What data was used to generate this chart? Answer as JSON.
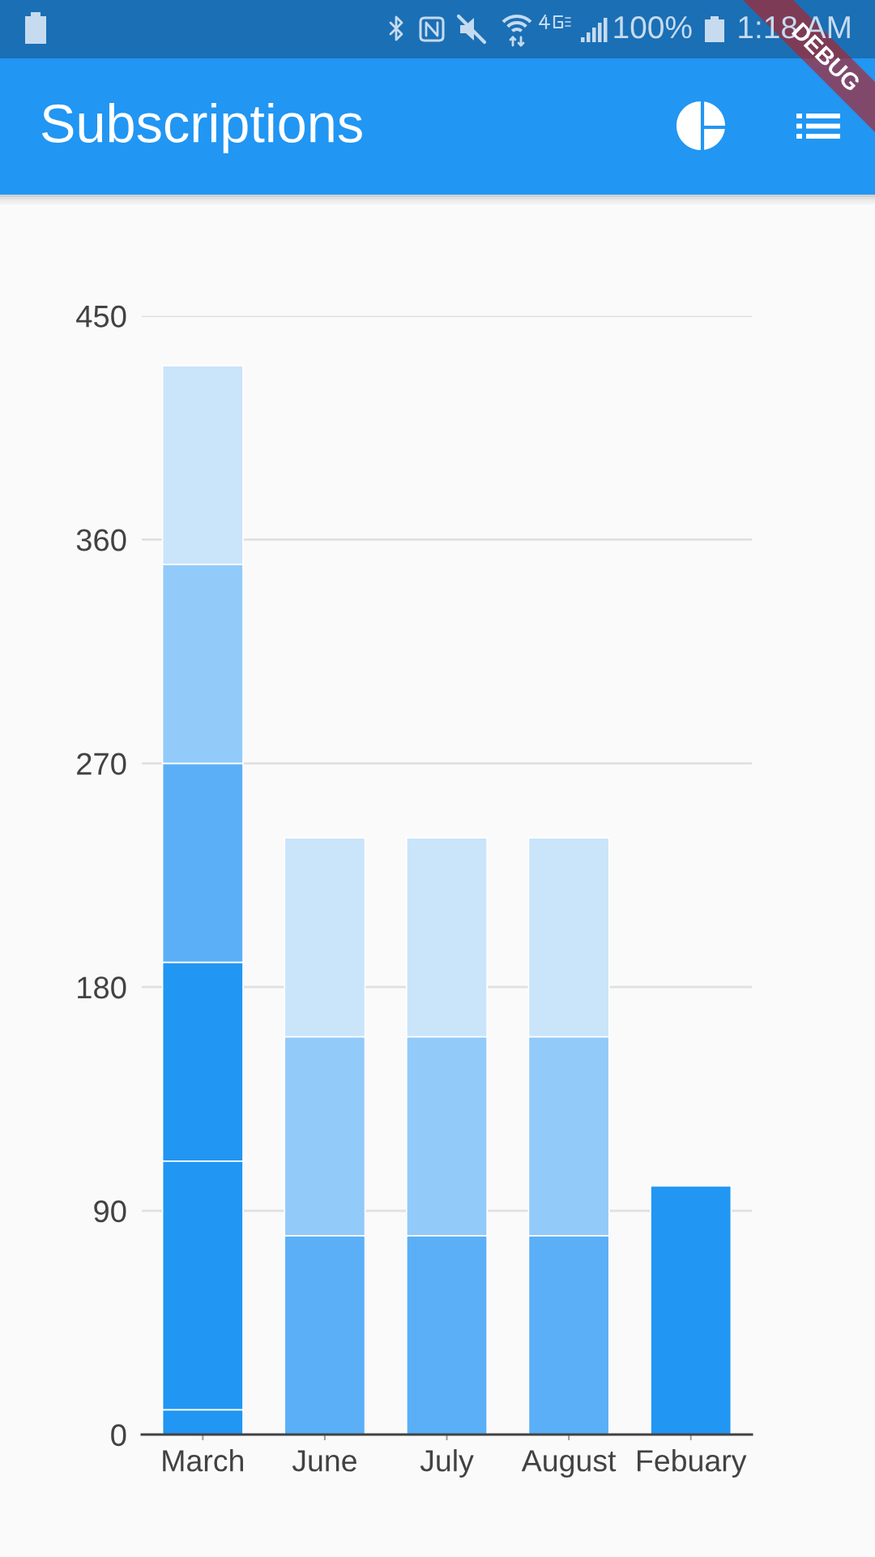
{
  "chart_data": {
    "type": "bar",
    "title": "Subscriptions",
    "categories": [
      "March",
      "June",
      "July",
      "August",
      "Febuary"
    ],
    "stacked": true,
    "series": [
      {
        "color": "#2196f3",
        "values": [
          10,
          null,
          null,
          null,
          null
        ]
      },
      {
        "color": "#2196f3",
        "values": [
          100,
          null,
          null,
          null,
          100
        ]
      },
      {
        "color": "#2196f3",
        "values": [
          80,
          null,
          null,
          null,
          null
        ]
      },
      {
        "color": "#5aaff6",
        "values": [
          80,
          80,
          80,
          80,
          null
        ]
      },
      {
        "color": "#92caf9",
        "values": [
          80,
          80,
          80,
          80,
          null
        ]
      },
      {
        "color": "#cae4fa",
        "values": [
          80,
          80,
          80,
          80,
          null
        ]
      }
    ],
    "ylim": [
      0,
      450
    ],
    "yticks": [
      0,
      90,
      180,
      270,
      360,
      450
    ],
    "grid": "y",
    "annotations": [
      "100%",
      "1:18 AM",
      "DEBUG"
    ]
  }
}
